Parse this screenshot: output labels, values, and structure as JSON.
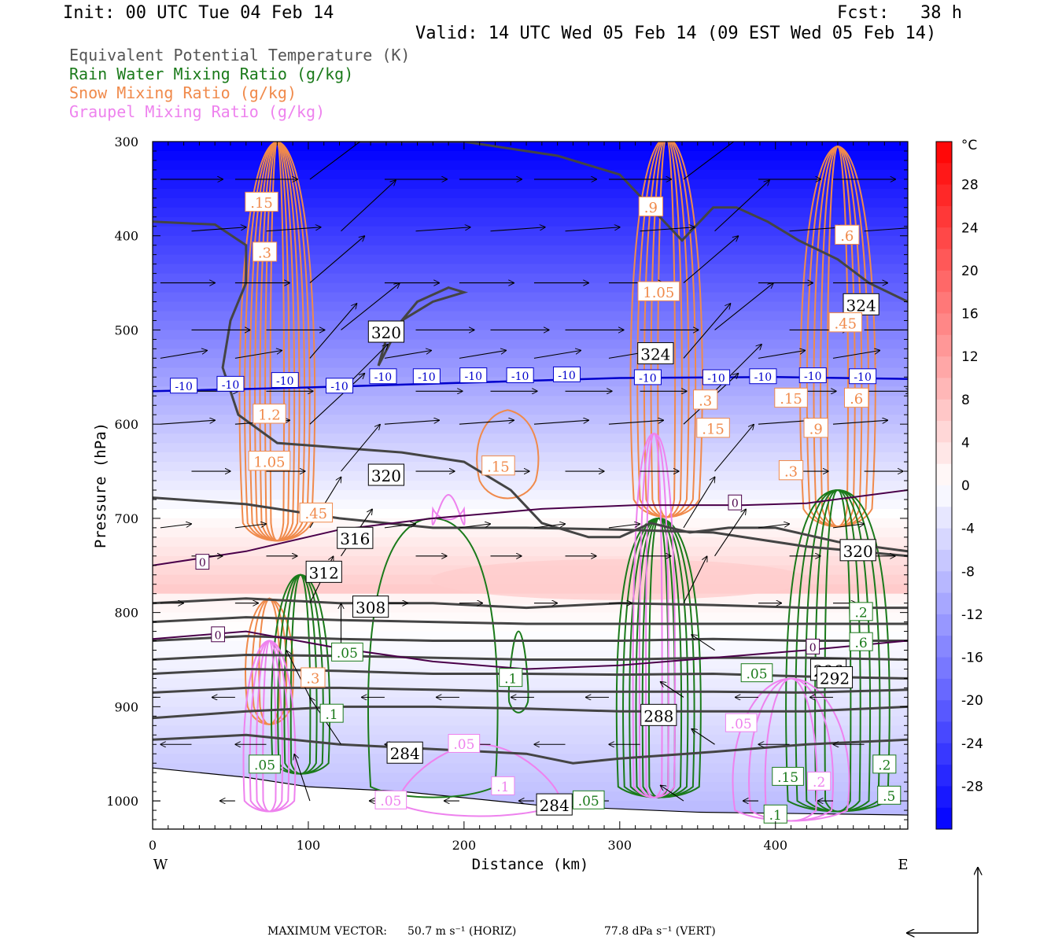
{
  "header": {
    "init": "Init: 00 UTC Tue 04 Feb 14",
    "fcst": "Fcst:   38 h",
    "valid": "Valid: 14 UTC Wed 05 Feb 14 (09 EST Wed 05 Feb 14)"
  },
  "legend": [
    {
      "label": "Equivalent Potential Temperature (K)",
      "color": "#555555"
    },
    {
      "label": "Rain Water Mixing Ratio (g/kg)",
      "color": "#1a7a1a"
    },
    {
      "label": "Snow Mixing Ratio (g/kg)",
      "color": "#f08a4b"
    },
    {
      "label": "Graupel Mixing Ratio (g/kg)",
      "color": "#ee82ee"
    }
  ],
  "footer": {
    "max_vector_label": "MAXIMUM VECTOR:",
    "horiz": "50.7 m s⁻¹ (HORIZ)",
    "vert": "77.8 dPa s⁻¹ (VERT)"
  },
  "chart_data": {
    "type": "cross-section",
    "xlabel": "Distance (km)",
    "ylabel": "Pressure (hPa)",
    "xlim": [
      0,
      485
    ],
    "ylim": [
      300,
      1030
    ],
    "x_ticks": [
      0,
      100,
      200,
      300,
      400
    ],
    "y_ticks": [
      300,
      400,
      500,
      600,
      700,
      800,
      900,
      1000
    ],
    "x_end_labels": {
      "left": "W",
      "right": "E"
    },
    "colorbar": {
      "unit": "°C",
      "ticks": [
        28,
        24,
        20,
        16,
        12,
        8,
        4,
        0,
        -4,
        -8,
        -12,
        -16,
        -20,
        -24,
        -28
      ],
      "range": [
        -32,
        32
      ],
      "cold_color": "#0000ff",
      "warm_color": "#ff0000"
    },
    "temperature_isotherms": [
      {
        "value": -10,
        "color": "#0000cc",
        "points": [
          [
            0,
            565
          ],
          [
            100,
            561
          ],
          [
            200,
            556
          ],
          [
            300,
            551
          ],
          [
            400,
            550
          ],
          [
            485,
            552
          ]
        ],
        "labels": [
          [
            20,
            560
          ],
          [
            50,
            558
          ],
          [
            85,
            554
          ],
          [
            120,
            560
          ],
          [
            148,
            550
          ],
          [
            176,
            550
          ],
          [
            206,
            549
          ],
          [
            236,
            549
          ],
          [
            266,
            548
          ],
          [
            318,
            551
          ],
          [
            362,
            551
          ],
          [
            392,
            550
          ],
          [
            424,
            549
          ],
          [
            456,
            550
          ]
        ]
      },
      {
        "value": 0,
        "color": "#4a004a",
        "points": [
          [
            0,
            750
          ],
          [
            60,
            735
          ],
          [
            120,
            712
          ],
          [
            180,
            700
          ],
          [
            250,
            690
          ],
          [
            310,
            686
          ],
          [
            380,
            686
          ],
          [
            420,
            684
          ],
          [
            485,
            670
          ]
        ],
        "labels": [
          [
            32,
            747
          ],
          [
            374,
            684
          ]
        ]
      },
      {
        "value": 0,
        "color": "#4a004a",
        "points": [
          [
            0,
            828
          ],
          [
            60,
            820
          ],
          [
            120,
            838
          ],
          [
            180,
            852
          ],
          [
            240,
            860
          ],
          [
            300,
            856
          ],
          [
            360,
            848
          ],
          [
            420,
            840
          ],
          [
            485,
            830
          ]
        ],
        "labels": [
          [
            42,
            824
          ],
          [
            424,
            837
          ]
        ]
      }
    ],
    "theta_e_contours": [
      {
        "value": 324,
        "points": [
          [
            130,
            300
          ],
          [
            200,
            300
          ],
          [
            260,
            315
          ],
          [
            300,
            335
          ],
          [
            320,
            370
          ],
          [
            340,
            405
          ],
          [
            360,
            370
          ],
          [
            375,
            370
          ],
          [
            395,
            385
          ],
          [
            415,
            405
          ],
          [
            440,
            425
          ],
          [
            460,
            450
          ],
          [
            485,
            470
          ]
        ],
        "labels": [
          [
            455,
            474
          ],
          [
            323,
            526
          ]
        ]
      },
      {
        "value": 320,
        "points": [
          [
            0,
            385
          ],
          [
            40,
            388
          ],
          [
            60,
            410
          ],
          [
            60,
            450
          ],
          [
            50,
            490
          ],
          [
            45,
            540
          ],
          [
            55,
            590
          ],
          [
            80,
            620
          ],
          [
            120,
            625
          ],
          [
            160,
            630
          ],
          [
            200,
            640
          ],
          [
            230,
            670
          ],
          [
            250,
            705
          ],
          [
            280,
            720
          ],
          [
            300,
            720
          ],
          [
            320,
            705
          ],
          [
            345,
            715
          ],
          [
            370,
            710
          ],
          [
            400,
            710
          ],
          [
            440,
            725
          ],
          [
            485,
            735
          ]
        ],
        "labels": [
          [
            150,
            655
          ],
          [
            453,
            735
          ]
        ]
      },
      {
        "value": 320,
        "points": [
          [
            145,
            538
          ],
          [
            160,
            490
          ],
          [
            180,
            470
          ],
          [
            200,
            460
          ],
          [
            190,
            455
          ],
          [
            170,
            470
          ],
          [
            150,
            510
          ],
          [
            145,
            538
          ]
        ],
        "labels": [
          [
            150,
            503
          ]
        ]
      },
      {
        "value": 316,
        "points": [
          [
            0,
            678
          ],
          [
            60,
            685
          ],
          [
            120,
            700
          ],
          [
            180,
            710
          ],
          [
            240,
            710
          ],
          [
            300,
            712
          ],
          [
            360,
            715
          ],
          [
            420,
            730
          ],
          [
            485,
            740
          ]
        ],
        "labels": [
          [
            130,
            722
          ]
        ]
      },
      {
        "value": 312,
        "points": [
          [
            0,
            790
          ],
          [
            60,
            785
          ],
          [
            120,
            790
          ],
          [
            180,
            790
          ],
          [
            240,
            795
          ],
          [
            300,
            790
          ],
          [
            360,
            792
          ],
          [
            420,
            795
          ],
          [
            485,
            795
          ]
        ],
        "labels": [
          [
            110,
            758
          ]
        ]
      },
      {
        "value": 308,
        "points": [
          [
            0,
            810
          ],
          [
            60,
            805
          ],
          [
            120,
            808
          ],
          [
            180,
            810
          ],
          [
            240,
            812
          ],
          [
            300,
            812
          ],
          [
            360,
            812
          ],
          [
            420,
            812
          ],
          [
            485,
            812
          ]
        ],
        "labels": [
          [
            140,
            795
          ]
        ]
      },
      {
        "value": 304,
        "points": [
          [
            0,
            830
          ],
          [
            60,
            825
          ],
          [
            120,
            828
          ],
          [
            180,
            830
          ],
          [
            240,
            830
          ],
          [
            300,
            830
          ],
          [
            360,
            828
          ],
          [
            420,
            830
          ],
          [
            485,
            830
          ]
        ],
        "labels": []
      },
      {
        "value": 300,
        "points": [
          [
            0,
            850
          ],
          [
            60,
            845
          ],
          [
            120,
            846
          ],
          [
            180,
            848
          ],
          [
            240,
            850
          ],
          [
            300,
            850
          ],
          [
            360,
            848
          ],
          [
            420,
            848
          ],
          [
            485,
            850
          ]
        ],
        "labels": []
      },
      {
        "value": 296,
        "points": [
          [
            0,
            865
          ],
          [
            60,
            860
          ],
          [
            120,
            862
          ],
          [
            180,
            865
          ],
          [
            240,
            865
          ],
          [
            300,
            866
          ],
          [
            360,
            865
          ],
          [
            420,
            868
          ],
          [
            485,
            870
          ]
        ],
        "labels": [
          [
            434,
            862
          ]
        ]
      },
      {
        "value": 292,
        "points": [
          [
            0,
            885
          ],
          [
            60,
            880
          ],
          [
            120,
            880
          ],
          [
            180,
            882
          ],
          [
            240,
            884
          ],
          [
            300,
            884
          ],
          [
            360,
            884
          ],
          [
            420,
            885
          ],
          [
            485,
            882
          ]
        ],
        "labels": [
          [
            438,
            870
          ]
        ]
      },
      {
        "value": 288,
        "points": [
          [
            0,
            912
          ],
          [
            60,
            905
          ],
          [
            120,
            900
          ],
          [
            180,
            900
          ],
          [
            240,
            902
          ],
          [
            300,
            905
          ],
          [
            360,
            905
          ],
          [
            420,
            905
          ],
          [
            485,
            900
          ]
        ],
        "labels": [
          [
            325,
            910
          ]
        ]
      },
      {
        "value": 284,
        "points": [
          [
            0,
            935
          ],
          [
            60,
            930
          ],
          [
            120,
            940
          ],
          [
            180,
            945
          ],
          [
            240,
            950
          ],
          [
            270,
            960
          ],
          [
            300,
            955
          ],
          [
            360,
            948
          ],
          [
            420,
            940
          ],
          [
            485,
            935
          ]
        ],
        "labels": [
          [
            162,
            950
          ],
          [
            258,
            1005
          ]
        ]
      }
    ],
    "rain_labels": [
      {
        "x": 125,
        "p": 843,
        "text": ".05"
      },
      {
        "x": 115,
        "p": 908,
        "text": ".1"
      },
      {
        "x": 72,
        "p": 962,
        "text": ".05"
      },
      {
        "x": 230,
        "p": 870,
        "text": ".1"
      },
      {
        "x": 280,
        "p": 1000,
        "text": ".05"
      },
      {
        "x": 388,
        "p": 865,
        "text": ".05"
      },
      {
        "x": 455,
        "p": 832,
        "text": ".6"
      },
      {
        "x": 455,
        "p": 800,
        "text": ".2"
      },
      {
        "x": 470,
        "p": 962,
        "text": ".2"
      },
      {
        "x": 408,
        "p": 975,
        "text": ".15"
      },
      {
        "x": 400,
        "p": 1015,
        "text": ".1"
      },
      {
        "x": 473,
        "p": 995,
        "text": ".5"
      }
    ],
    "snow_labels": [
      {
        "x": 70,
        "p": 365,
        "text": ".15"
      },
      {
        "x": 72,
        "p": 418,
        "text": ".3"
      },
      {
        "x": 75,
        "p": 590,
        "text": "1.2"
      },
      {
        "x": 75,
        "p": 640,
        "text": "1.05"
      },
      {
        "x": 105,
        "p": 695,
        "text": ".45"
      },
      {
        "x": 222,
        "p": 645,
        "text": ".15"
      },
      {
        "x": 320,
        "p": 370,
        "text": ".9"
      },
      {
        "x": 325,
        "p": 460,
        "text": "1.05"
      },
      {
        "x": 355,
        "p": 575,
        "text": ".3"
      },
      {
        "x": 360,
        "p": 605,
        "text": ".15"
      },
      {
        "x": 446,
        "p": 400,
        "text": ".6"
      },
      {
        "x": 445,
        "p": 493,
        "text": ".45"
      },
      {
        "x": 410,
        "p": 573,
        "text": ".15"
      },
      {
        "x": 452,
        "p": 573,
        "text": ".6"
      },
      {
        "x": 426,
        "p": 605,
        "text": ".9"
      },
      {
        "x": 410,
        "p": 650,
        "text": ".3"
      },
      {
        "x": 103,
        "p": 870,
        "text": ".3"
      }
    ],
    "graupel_labels": [
      {
        "x": 200,
        "p": 940,
        "text": ".05"
      },
      {
        "x": 225,
        "p": 985,
        "text": ".1"
      },
      {
        "x": 153,
        "p": 1000,
        "text": ".05"
      },
      {
        "x": 378,
        "p": 918,
        "text": ".05"
      },
      {
        "x": 428,
        "p": 980,
        "text": ".2"
      }
    ]
  }
}
